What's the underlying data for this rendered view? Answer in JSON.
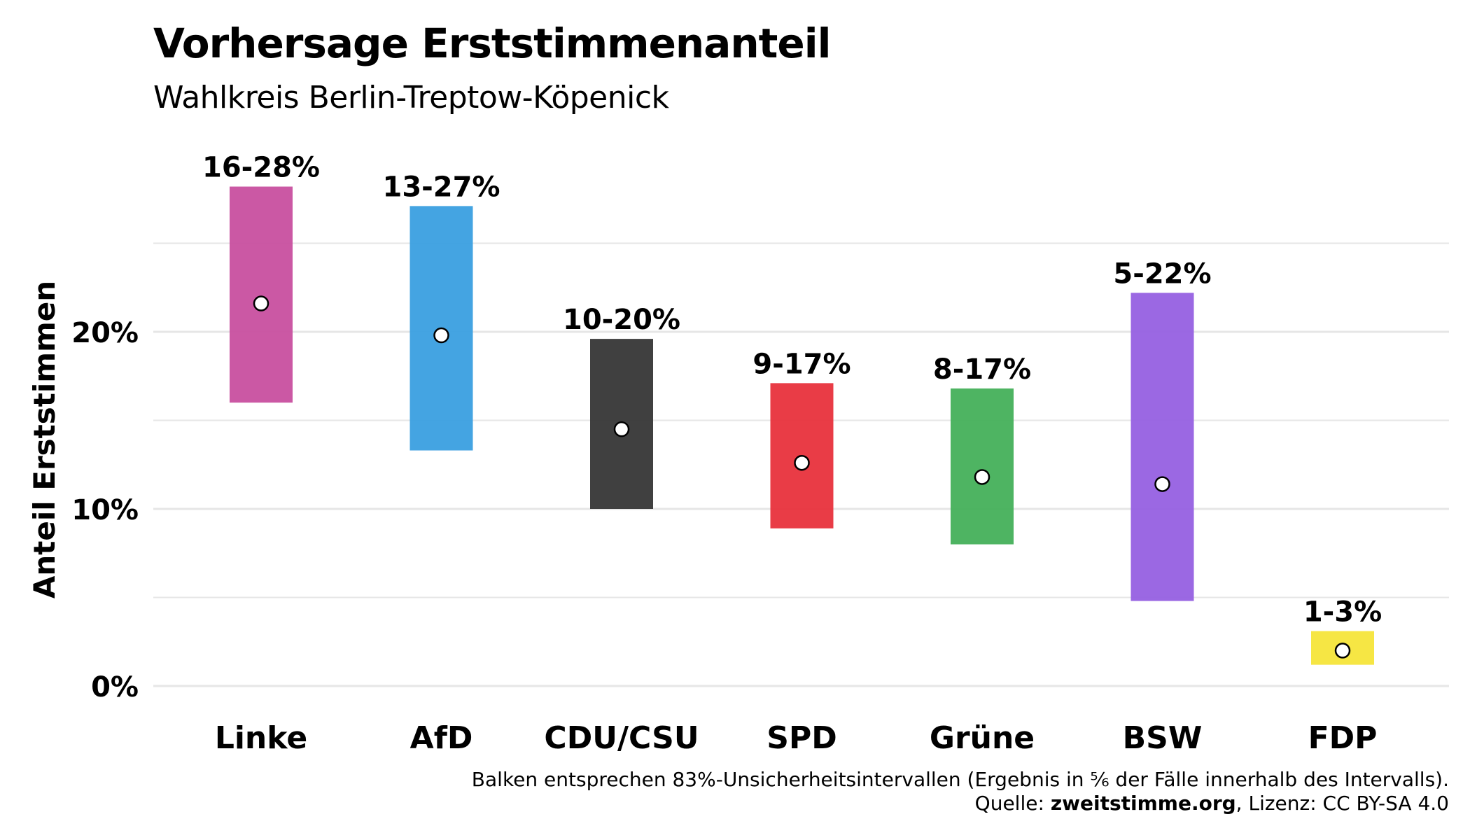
{
  "chart_data": {
    "type": "range_bar",
    "title": "Vorhersage Erststimmenanteil",
    "subtitle": "Wahlkreis Berlin-Treptow-Köpenick",
    "ylabel": "Anteil Erststimmen",
    "xlabel": "",
    "ylim": [
      0,
      30
    ],
    "yticks": [
      0,
      10,
      20
    ],
    "ytick_labels": [
      "0%",
      "10%",
      "20%"
    ],
    "grid": true,
    "categories": [
      "Linke",
      "AfD",
      "CDU/CSU",
      "SPD",
      "Grüne",
      "BSW",
      "FDP"
    ],
    "series": [
      {
        "values_low": [
          16,
          13.3,
          10,
          8.9,
          8,
          4.8,
          1.2
        ],
        "values_high": [
          28.2,
          27.1,
          19.6,
          17.1,
          16.8,
          22.2,
          3.1
        ],
        "values_point": [
          21.6,
          19.8,
          14.5,
          12.6,
          11.8,
          11.4,
          2
        ],
        "labels": [
          "16-28%",
          "13-27%",
          "10-20%",
          "9-17%",
          "8-17%",
          "5-22%",
          "1-3%"
        ],
        "colors": [
          "#C84F9F",
          "#3A9FE0",
          "#363636",
          "#E8323C",
          "#45B05A",
          "#9660E1",
          "#F5E53A"
        ]
      }
    ],
    "caption_line1": "Balken entsprechen 83%-Unsicherheitsintervallen (Ergebnis in ⅚ der Fälle innerhalb des Intervalls).",
    "source_prefix": "Quelle: ",
    "source_name": "zweitstimme.org",
    "license": ", Lizenz: CC BY-SA 4.0"
  }
}
